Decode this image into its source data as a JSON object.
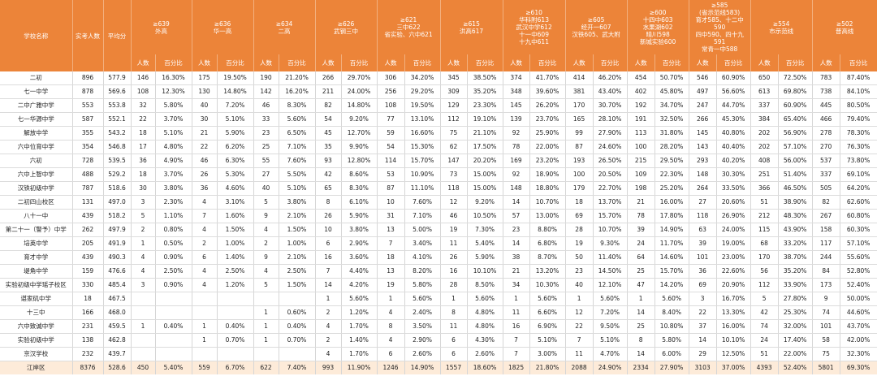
{
  "header": {
    "school_col": "学校名称",
    "count_col": "实考人数",
    "avg_col": "平均分",
    "sub_count": "人数",
    "sub_pct": "百分比",
    "groups": [
      {
        "lines": [
          "≥639",
          "外高"
        ]
      },
      {
        "lines": [
          "≥636",
          "华一高"
        ]
      },
      {
        "lines": [
          "≥634",
          "二高"
        ]
      },
      {
        "lines": [
          "≥626",
          "武钢三中"
        ]
      },
      {
        "lines": [
          "≥621",
          "三中622",
          "省实验、六中621"
        ]
      },
      {
        "lines": [
          "≥615",
          "洪高617"
        ]
      },
      {
        "lines": [
          "≥610",
          "华科附613",
          "武汉中学612",
          "十一中609",
          "十九中611"
        ]
      },
      {
        "lines": [
          "≥605",
          "经开一607",
          "汉铁605、武大附"
        ]
      },
      {
        "lines": [
          "≥600",
          "十四中603",
          "水果湖602",
          "晴川598",
          "新城实验600"
        ]
      },
      {
        "lines": [
          "≥585",
          "(省示范线583)",
          "育才585、十二中",
          "590",
          "四中590、四十九",
          "591",
          "常青一中588"
        ]
      },
      {
        "lines": [
          "≥554",
          "市示范线"
        ]
      },
      {
        "lines": [
          "≥502",
          "普高线"
        ]
      }
    ]
  },
  "rows": [
    {
      "name": "二初",
      "count": "896",
      "avg": "577.9",
      "cells": [
        "146",
        "16.30%",
        "175",
        "19.50%",
        "190",
        "21.20%",
        "266",
        "29.70%",
        "306",
        "34.20%",
        "345",
        "38.50%",
        "374",
        "41.70%",
        "414",
        "46.20%",
        "454",
        "50.70%",
        "546",
        "60.90%",
        "650",
        "72.50%",
        "783",
        "87.40%"
      ]
    },
    {
      "name": "七一中学",
      "count": "878",
      "avg": "569.6",
      "cells": [
        "108",
        "12.30%",
        "130",
        "14.80%",
        "142",
        "16.20%",
        "211",
        "24.00%",
        "256",
        "29.20%",
        "309",
        "35.20%",
        "348",
        "39.60%",
        "381",
        "43.40%",
        "402",
        "45.80%",
        "497",
        "56.60%",
        "613",
        "69.80%",
        "738",
        "84.10%"
      ]
    },
    {
      "name": "二中广雅中学",
      "count": "553",
      "avg": "553.8",
      "cells": [
        "32",
        "5.80%",
        "40",
        "7.20%",
        "46",
        "8.30%",
        "82",
        "14.80%",
        "108",
        "19.50%",
        "129",
        "23.30%",
        "145",
        "26.20%",
        "170",
        "30.70%",
        "192",
        "34.70%",
        "247",
        "44.70%",
        "337",
        "60.90%",
        "445",
        "80.50%"
      ]
    },
    {
      "name": "七一华源中学",
      "count": "587",
      "avg": "552.1",
      "cells": [
        "22",
        "3.70%",
        "30",
        "5.10%",
        "33",
        "5.60%",
        "54",
        "9.20%",
        "77",
        "13.10%",
        "112",
        "19.10%",
        "139",
        "23.70%",
        "165",
        "28.10%",
        "191",
        "32.50%",
        "266",
        "45.30%",
        "384",
        "65.40%",
        "466",
        "79.40%"
      ]
    },
    {
      "name": "解放中学",
      "count": "355",
      "avg": "543.2",
      "cells": [
        "18",
        "5.10%",
        "21",
        "5.90%",
        "23",
        "6.50%",
        "45",
        "12.70%",
        "59",
        "16.60%",
        "75",
        "21.10%",
        "92",
        "25.90%",
        "99",
        "27.90%",
        "113",
        "31.80%",
        "145",
        "40.80%",
        "202",
        "56.90%",
        "278",
        "78.30%"
      ]
    },
    {
      "name": "六中位育中学",
      "count": "354",
      "avg": "546.8",
      "cells": [
        "17",
        "4.80%",
        "22",
        "6.20%",
        "25",
        "7.10%",
        "35",
        "9.90%",
        "54",
        "15.30%",
        "62",
        "17.50%",
        "78",
        "22.00%",
        "87",
        "24.60%",
        "100",
        "28.20%",
        "143",
        "40.40%",
        "202",
        "57.10%",
        "270",
        "76.30%"
      ]
    },
    {
      "name": "六初",
      "count": "728",
      "avg": "539.5",
      "cells": [
        "36",
        "4.90%",
        "46",
        "6.30%",
        "55",
        "7.60%",
        "93",
        "12.80%",
        "114",
        "15.70%",
        "147",
        "20.20%",
        "169",
        "23.20%",
        "193",
        "26.50%",
        "215",
        "29.50%",
        "293",
        "40.20%",
        "408",
        "56.00%",
        "537",
        "73.80%"
      ]
    },
    {
      "name": "六中上智中学",
      "count": "488",
      "avg": "529.2",
      "cells": [
        "18",
        "3.70%",
        "26",
        "5.30%",
        "27",
        "5.50%",
        "42",
        "8.60%",
        "53",
        "10.90%",
        "73",
        "15.00%",
        "92",
        "18.90%",
        "100",
        "20.50%",
        "109",
        "22.30%",
        "148",
        "30.30%",
        "251",
        "51.40%",
        "337",
        "69.10%"
      ]
    },
    {
      "name": "汉铁初级中学",
      "count": "787",
      "avg": "518.6",
      "cells": [
        "30",
        "3.80%",
        "36",
        "4.60%",
        "40",
        "5.10%",
        "65",
        "8.30%",
        "87",
        "11.10%",
        "118",
        "15.00%",
        "148",
        "18.80%",
        "179",
        "22.70%",
        "198",
        "25.20%",
        "264",
        "33.50%",
        "366",
        "46.50%",
        "505",
        "64.20%"
      ]
    },
    {
      "name": "二初四山校区",
      "count": "131",
      "avg": "497.0",
      "cells": [
        "3",
        "2.30%",
        "4",
        "3.10%",
        "5",
        "3.80%",
        "8",
        "6.10%",
        "10",
        "7.60%",
        "12",
        "9.20%",
        "14",
        "10.70%",
        "18",
        "13.70%",
        "21",
        "16.00%",
        "27",
        "20.60%",
        "51",
        "38.90%",
        "82",
        "62.60%"
      ]
    },
    {
      "name": "八十一中",
      "count": "439",
      "avg": "518.2",
      "cells": [
        "5",
        "1.10%",
        "7",
        "1.60%",
        "9",
        "2.10%",
        "26",
        "5.90%",
        "31",
        "7.10%",
        "46",
        "10.50%",
        "57",
        "13.00%",
        "69",
        "15.70%",
        "78",
        "17.80%",
        "118",
        "26.90%",
        "212",
        "48.30%",
        "267",
        "60.80%"
      ]
    },
    {
      "name": "第二十一（警予）中学",
      "count": "262",
      "avg": "497.9",
      "cells": [
        "2",
        "0.80%",
        "4",
        "1.50%",
        "4",
        "1.50%",
        "10",
        "3.80%",
        "13",
        "5.00%",
        "19",
        "7.30%",
        "23",
        "8.80%",
        "28",
        "10.70%",
        "39",
        "14.90%",
        "63",
        "24.00%",
        "115",
        "43.90%",
        "158",
        "60.30%"
      ]
    },
    {
      "name": "培英中学",
      "count": "205",
      "avg": "491.9",
      "cells": [
        "1",
        "0.50%",
        "2",
        "1.00%",
        "2",
        "1.00%",
        "6",
        "2.90%",
        "7",
        "3.40%",
        "11",
        "5.40%",
        "14",
        "6.80%",
        "19",
        "9.30%",
        "24",
        "11.70%",
        "39",
        "19.00%",
        "68",
        "33.20%",
        "117",
        "57.10%"
      ]
    },
    {
      "name": "育才中学",
      "count": "439",
      "avg": "490.3",
      "cells": [
        "4",
        "0.90%",
        "6",
        "1.40%",
        "9",
        "2.10%",
        "16",
        "3.60%",
        "18",
        "4.10%",
        "26",
        "5.90%",
        "38",
        "8.70%",
        "50",
        "11.40%",
        "64",
        "14.60%",
        "101",
        "23.00%",
        "170",
        "38.70%",
        "244",
        "55.60%"
      ]
    },
    {
      "name": "堤角中学",
      "count": "159",
      "avg": "476.6",
      "cells": [
        "4",
        "2.50%",
        "4",
        "2.50%",
        "4",
        "2.50%",
        "7",
        "4.40%",
        "13",
        "8.20%",
        "16",
        "10.10%",
        "21",
        "13.20%",
        "23",
        "14.50%",
        "25",
        "15.70%",
        "36",
        "22.60%",
        "56",
        "35.20%",
        "84",
        "52.80%"
      ]
    },
    {
      "name": "实验初级中学瑶子校区",
      "count": "330",
      "avg": "485.4",
      "cells": [
        "3",
        "0.90%",
        "4",
        "1.20%",
        "5",
        "1.50%",
        "14",
        "4.20%",
        "19",
        "5.80%",
        "28",
        "8.50%",
        "34",
        "10.30%",
        "40",
        "12.10%",
        "47",
        "14.20%",
        "69",
        "20.90%",
        "112",
        "33.90%",
        "173",
        "52.40%"
      ]
    },
    {
      "name": "谌家矶中学",
      "count": "18",
      "avg": "467.5",
      "cells": [
        "",
        "",
        "",
        "",
        "",
        "",
        "1",
        "5.60%",
        "1",
        "5.60%",
        "1",
        "5.60%",
        "1",
        "5.60%",
        "1",
        "5.60%",
        "1",
        "5.60%",
        "3",
        "16.70%",
        "5",
        "27.80%",
        "9",
        "50.00%"
      ]
    },
    {
      "name": "十三中",
      "count": "166",
      "avg": "468.0",
      "cells": [
        "",
        "",
        "",
        "",
        "1",
        "0.60%",
        "2",
        "1.20%",
        "4",
        "2.40%",
        "8",
        "4.80%",
        "11",
        "6.60%",
        "12",
        "7.20%",
        "14",
        "8.40%",
        "22",
        "13.30%",
        "42",
        "25.30%",
        "74",
        "44.60%"
      ]
    },
    {
      "name": "六中致诚中学",
      "count": "231",
      "avg": "459.5",
      "cells": [
        "1",
        "0.40%",
        "1",
        "0.40%",
        "1",
        "0.40%",
        "4",
        "1.70%",
        "8",
        "3.50%",
        "11",
        "4.80%",
        "16",
        "6.90%",
        "22",
        "9.50%",
        "25",
        "10.80%",
        "37",
        "16.00%",
        "74",
        "32.00%",
        "101",
        "43.70%"
      ]
    },
    {
      "name": "实验初级中学",
      "count": "138",
      "avg": "462.8",
      "cells": [
        "",
        "",
        "1",
        "0.70%",
        "1",
        "0.70%",
        "2",
        "1.40%",
        "4",
        "2.90%",
        "6",
        "4.30%",
        "7",
        "5.10%",
        "7",
        "5.10%",
        "8",
        "5.80%",
        "14",
        "10.10%",
        "24",
        "17.40%",
        "58",
        "42.00%"
      ]
    },
    {
      "name": "京汉学校",
      "count": "232",
      "avg": "439.7",
      "cells": [
        "",
        "",
        "",
        "",
        "",
        "",
        "4",
        "1.70%",
        "6",
        "2.60%",
        "6",
        "2.60%",
        "7",
        "3.00%",
        "11",
        "4.70%",
        "14",
        "6.00%",
        "29",
        "12.50%",
        "51",
        "22.00%",
        "75",
        "32.30%"
      ]
    },
    {
      "name": "江岸区",
      "count": "8376",
      "avg": "528.6",
      "cells": [
        "450",
        "5.40%",
        "559",
        "6.70%",
        "622",
        "7.40%",
        "993",
        "11.90%",
        "1246",
        "14.90%",
        "1557",
        "18.60%",
        "1825",
        "21.80%",
        "2088",
        "24.90%",
        "2334",
        "27.90%",
        "3103",
        "37.00%",
        "4393",
        "52.40%",
        "5801",
        "69.30%"
      ]
    }
  ]
}
